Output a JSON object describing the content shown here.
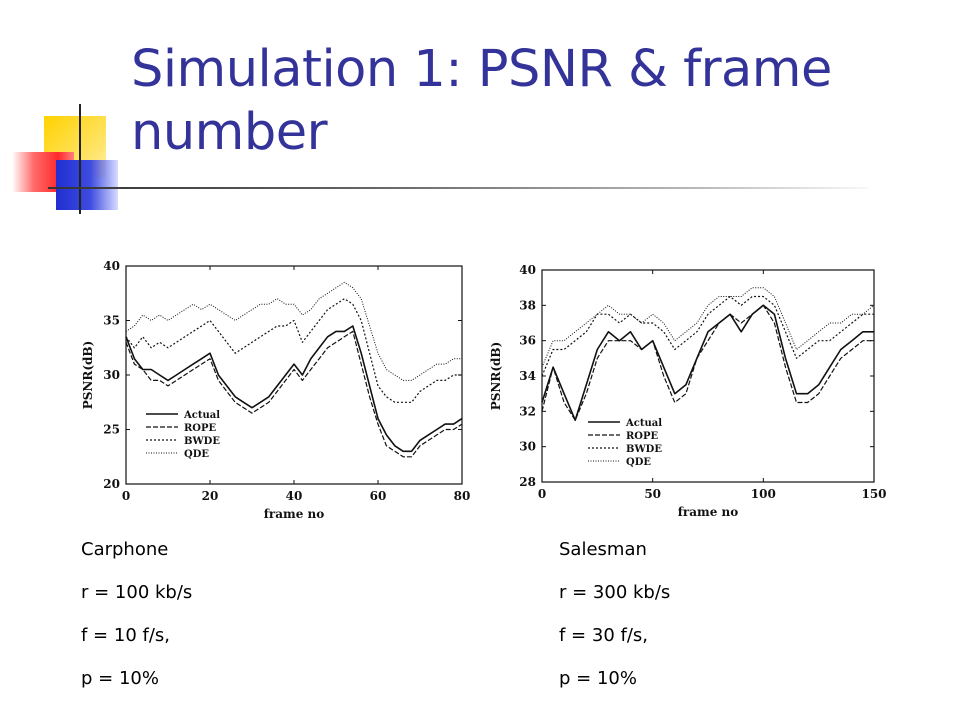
{
  "slide": {
    "title": "Simulation 1: PSNR & frame number"
  },
  "captions": {
    "left": {
      "name": "Carphone",
      "rate": "r = 100 kb/s",
      "frame_rate": "f = 10 f/s,",
      "loss": "p = 10%"
    },
    "right": {
      "name": "Salesman",
      "rate": "r = 300 kb/s",
      "frame_rate": "f = 30 f/s,",
      "loss": "p = 10%"
    }
  },
  "colors": {
    "title": "#333399",
    "deco_yellow": "#ffd200",
    "deco_red": "#ff2a2a",
    "deco_blue": "#1f2fd0"
  },
  "chart_data": [
    {
      "type": "line",
      "xlabel": "frame no",
      "ylabel": "PSNR(dB)",
      "xlim": [
        0,
        80
      ],
      "ylim": [
        20,
        40
      ],
      "xticks": [
        0,
        20,
        40,
        60,
        80
      ],
      "yticks": [
        20,
        25,
        30,
        35,
        40
      ],
      "legend_position": "bottom-left",
      "series": [
        {
          "name": "Actual",
          "dash": "solid",
          "x": [
            0,
            2,
            4,
            6,
            8,
            10,
            12,
            14,
            16,
            18,
            20,
            22,
            24,
            26,
            28,
            30,
            32,
            34,
            36,
            38,
            40,
            42,
            44,
            46,
            48,
            50,
            52,
            54,
            56,
            58,
            60,
            62,
            64,
            66,
            68,
            70,
            72,
            74,
            76,
            78,
            80
          ],
          "y": [
            33.5,
            31.5,
            30.5,
            30.5,
            30,
            29.5,
            30,
            30.5,
            31,
            31.5,
            32,
            30,
            29,
            28,
            27.5,
            27,
            27.5,
            28,
            29,
            30,
            31,
            30,
            31.5,
            32.5,
            33.5,
            34,
            34,
            34.5,
            32,
            29,
            26,
            24.5,
            23.5,
            23,
            23,
            24,
            24.5,
            25,
            25.5,
            25.5,
            26
          ]
        },
        {
          "name": "ROPE",
          "dash": "dashed",
          "x": [
            0,
            2,
            4,
            6,
            8,
            10,
            12,
            14,
            16,
            18,
            20,
            22,
            24,
            26,
            28,
            30,
            32,
            34,
            36,
            38,
            40,
            42,
            44,
            46,
            48,
            50,
            52,
            54,
            56,
            58,
            60,
            62,
            64,
            66,
            68,
            70,
            72,
            74,
            76,
            78,
            80
          ],
          "y": [
            33,
            31,
            30.5,
            29.5,
            29.5,
            29,
            29.5,
            30,
            30.5,
            31,
            31.5,
            29.5,
            28.5,
            27.5,
            27,
            26.5,
            27,
            27.5,
            28.5,
            29.5,
            30.5,
            29.5,
            30.5,
            31.5,
            32.5,
            33,
            33.5,
            34,
            31,
            28,
            25.5,
            23.5,
            23,
            22.5,
            22.5,
            23.5,
            24,
            24.5,
            25,
            25,
            25.5
          ]
        },
        {
          "name": "BWDE",
          "dash": "dotted",
          "x": [
            0,
            2,
            4,
            6,
            8,
            10,
            12,
            14,
            16,
            18,
            20,
            22,
            24,
            26,
            28,
            30,
            32,
            34,
            36,
            38,
            40,
            42,
            44,
            46,
            48,
            50,
            52,
            54,
            56,
            58,
            60,
            62,
            64,
            66,
            68,
            70,
            72,
            74,
            76,
            78,
            80
          ],
          "y": [
            33.5,
            32.5,
            33.5,
            32.5,
            33,
            32.5,
            33,
            33.5,
            34,
            34.5,
            35,
            34,
            33,
            32,
            32.5,
            33,
            33.5,
            34,
            34.5,
            34.5,
            35,
            33,
            34,
            35,
            36,
            36.5,
            37,
            36.5,
            35,
            32,
            29,
            28,
            27.5,
            27.5,
            27.5,
            28.5,
            29,
            29.5,
            29.5,
            30,
            30
          ]
        },
        {
          "name": "QDE",
          "dash": "fine-dotted",
          "x": [
            0,
            2,
            4,
            6,
            8,
            10,
            12,
            14,
            16,
            18,
            20,
            22,
            24,
            26,
            28,
            30,
            32,
            34,
            36,
            38,
            40,
            42,
            44,
            46,
            48,
            50,
            52,
            54,
            56,
            58,
            60,
            62,
            64,
            66,
            68,
            70,
            72,
            74,
            76,
            78,
            80
          ],
          "y": [
            34,
            34.5,
            35.5,
            35,
            35.5,
            35,
            35.5,
            36,
            36.5,
            36,
            36.5,
            36,
            35.5,
            35,
            35.5,
            36,
            36.5,
            36.5,
            37,
            36.5,
            36.5,
            35.5,
            36,
            37,
            37.5,
            38,
            38.5,
            38,
            37,
            34.5,
            32,
            30.5,
            30,
            29.5,
            29.5,
            30,
            30.5,
            31,
            31,
            31.5,
            31.5
          ]
        }
      ]
    },
    {
      "type": "line",
      "xlabel": "frame no",
      "ylabel": "PSNR(dB)",
      "xlim": [
        0,
        150
      ],
      "ylim": [
        28,
        40
      ],
      "xticks": [
        0,
        50,
        100,
        150
      ],
      "yticks": [
        28,
        30,
        32,
        34,
        36,
        38,
        40
      ],
      "legend_position": "bottom-center",
      "series": [
        {
          "name": "Actual",
          "dash": "solid",
          "x": [
            0,
            5,
            10,
            15,
            20,
            25,
            30,
            35,
            40,
            45,
            50,
            55,
            60,
            65,
            70,
            75,
            80,
            85,
            90,
            95,
            100,
            105,
            110,
            115,
            120,
            125,
            130,
            135,
            140,
            145,
            150
          ],
          "y": [
            32.5,
            34.5,
            33,
            31.5,
            33.5,
            35.5,
            36.5,
            36,
            36.5,
            35.5,
            36,
            34.5,
            33,
            33.5,
            35,
            36.5,
            37,
            37.5,
            36.5,
            37.5,
            38,
            37.5,
            35,
            33,
            33,
            33.5,
            34.5,
            35.5,
            36,
            36.5,
            36.5
          ]
        },
        {
          "name": "ROPE",
          "dash": "dashed",
          "x": [
            0,
            5,
            10,
            15,
            20,
            25,
            30,
            35,
            40,
            45,
            50,
            55,
            60,
            65,
            70,
            75,
            80,
            85,
            90,
            95,
            100,
            105,
            110,
            115,
            120,
            125,
            130,
            135,
            140,
            145,
            150
          ],
          "y": [
            32,
            34.5,
            32.5,
            31.5,
            33,
            35,
            36,
            36,
            36,
            35.5,
            36,
            34,
            32.5,
            33,
            35,
            36,
            37,
            37.5,
            37,
            37.5,
            38,
            37,
            34.5,
            32.5,
            32.5,
            33,
            34,
            35,
            35.5,
            36,
            36
          ]
        },
        {
          "name": "BWDE",
          "dash": "dotted",
          "x": [
            0,
            5,
            10,
            15,
            20,
            25,
            30,
            35,
            40,
            45,
            50,
            55,
            60,
            65,
            70,
            75,
            80,
            85,
            90,
            95,
            100,
            105,
            110,
            115,
            120,
            125,
            130,
            135,
            140,
            145,
            150
          ],
          "y": [
            34,
            35.5,
            35.5,
            36,
            36.5,
            37.5,
            37.5,
            37,
            37.5,
            37,
            37,
            36.5,
            35.5,
            36,
            36.5,
            37.5,
            38,
            38.5,
            38,
            38.5,
            38.5,
            38,
            36.5,
            35,
            35.5,
            36,
            36,
            36.5,
            37,
            37.5,
            37.5
          ]
        },
        {
          "name": "QDE",
          "dash": "fine-dotted",
          "x": [
            0,
            5,
            10,
            15,
            20,
            25,
            30,
            35,
            40,
            45,
            50,
            55,
            60,
            65,
            70,
            75,
            80,
            85,
            90,
            95,
            100,
            105,
            110,
            115,
            120,
            125,
            130,
            135,
            140,
            145,
            150
          ],
          "y": [
            34.5,
            36,
            36,
            36.5,
            37,
            37.5,
            38,
            37.5,
            37.5,
            37,
            37.5,
            37,
            36,
            36.5,
            37,
            38,
            38.5,
            38.5,
            38.5,
            39,
            39,
            38.5,
            37,
            35.5,
            36,
            36.5,
            37,
            37,
            37.5,
            37.5,
            38
          ]
        }
      ]
    }
  ]
}
